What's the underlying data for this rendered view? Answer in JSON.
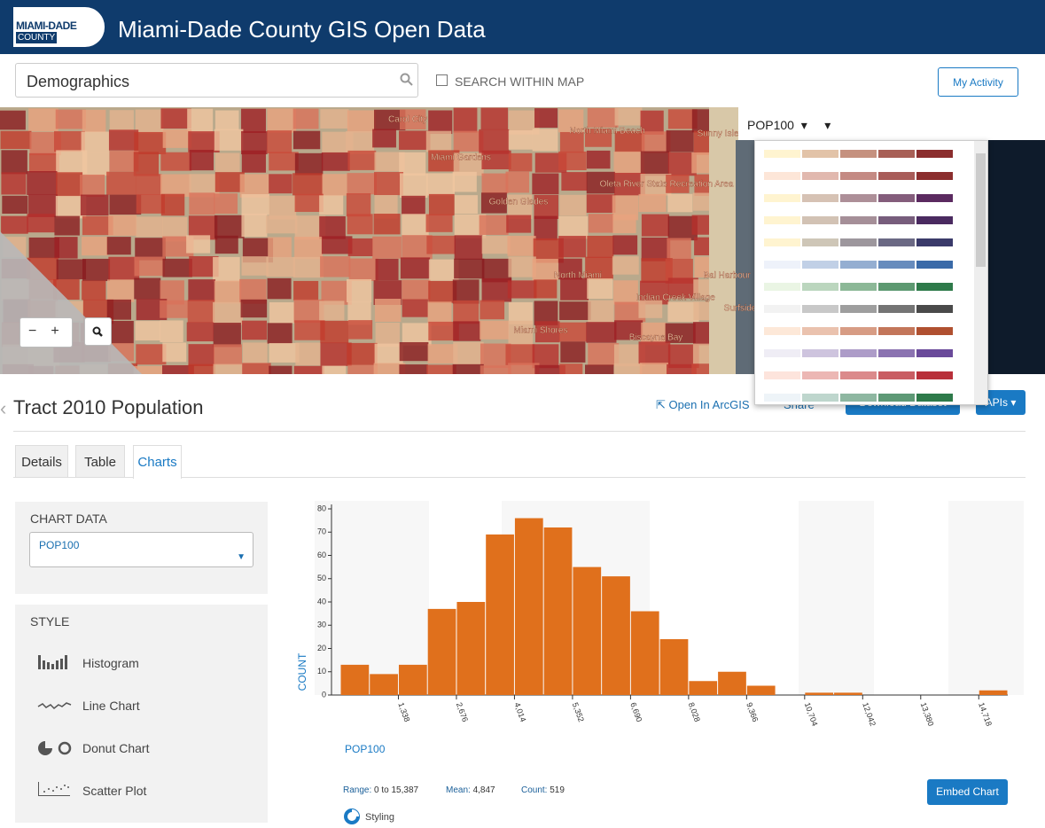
{
  "header": {
    "logo_top": "MIAMI-DADE",
    "logo_bottom": "COUNTY",
    "title": "Miami-Dade County GIS Open Data"
  },
  "search": {
    "query": "Demographics",
    "within_map": "SEARCH WITHIN MAP",
    "my_activity": "My Activity"
  },
  "map": {
    "layer": "POP100",
    "labels": [
      "Carol City",
      "Miami Gardens",
      "North Miami Beach",
      "Golden Glades",
      "Oleta River State Recreation Area",
      "North Miami",
      "Bal Harbour",
      "Indian Creek Village",
      "Surfside",
      "Miami Shores",
      "Biscayne Bay",
      "Sunny Isles Beach"
    ]
  },
  "dataset": {
    "title": "Tract 2010 Population",
    "open_arcgis": "Open In ArcGIS",
    "share": "Share",
    "download": "Download Dataset",
    "apis": "APIs"
  },
  "tabs": [
    "Details",
    "Table",
    "Charts"
  ],
  "sidebar": {
    "chart_data_heading": "CHART DATA",
    "field": "POP100",
    "style_heading": "STYLE",
    "styles": [
      "Histogram",
      "Line Chart",
      "Donut Chart",
      "Scatter Plot"
    ]
  },
  "chart_data": {
    "type": "histogram",
    "x_label": "POP100",
    "y_label": "COUNT",
    "color": "#e0701c",
    "bins": [
      0,
      669,
      1338,
      2007,
      2676,
      3345,
      4014,
      4683,
      5352,
      6021,
      6690,
      7359,
      8028,
      8697,
      9366,
      10035,
      10704,
      11373,
      12042,
      12711,
      13380,
      14049,
      14718,
      15387
    ],
    "values": [
      13,
      9,
      13,
      37,
      40,
      69,
      76,
      72,
      55,
      51,
      36,
      24,
      6,
      10,
      4,
      0,
      1,
      1,
      0,
      0,
      0,
      0,
      2
    ],
    "xlim": [
      0,
      15387
    ],
    "xticks": [
      {
        "value": 1338,
        "label": "1,338"
      },
      {
        "value": 2676,
        "label": "2,676"
      },
      {
        "value": 4014,
        "label": "4,014"
      },
      {
        "value": 5352,
        "label": "5,352"
      },
      {
        "value": 6690,
        "label": "6,690"
      },
      {
        "value": 8028,
        "label": "8,028"
      },
      {
        "value": 9366,
        "label": "9,366"
      },
      {
        "value": 10704,
        "label": "10,704"
      },
      {
        "value": 12042,
        "label": "12,042"
      },
      {
        "value": 13380,
        "label": "13,380"
      },
      {
        "value": 14718,
        "label": "14,718"
      }
    ],
    "ylim": [
      0,
      80
    ],
    "yticks": [
      0,
      10,
      20,
      30,
      40,
      50,
      60,
      70,
      80
    ]
  },
  "stats": {
    "range_label": "Range:",
    "range": "0 to 15,387",
    "mean_label": "Mean:",
    "mean": "4,847",
    "count_label": "Count:",
    "count": "519"
  },
  "embed": "Embed Chart",
  "styling": "Styling"
}
